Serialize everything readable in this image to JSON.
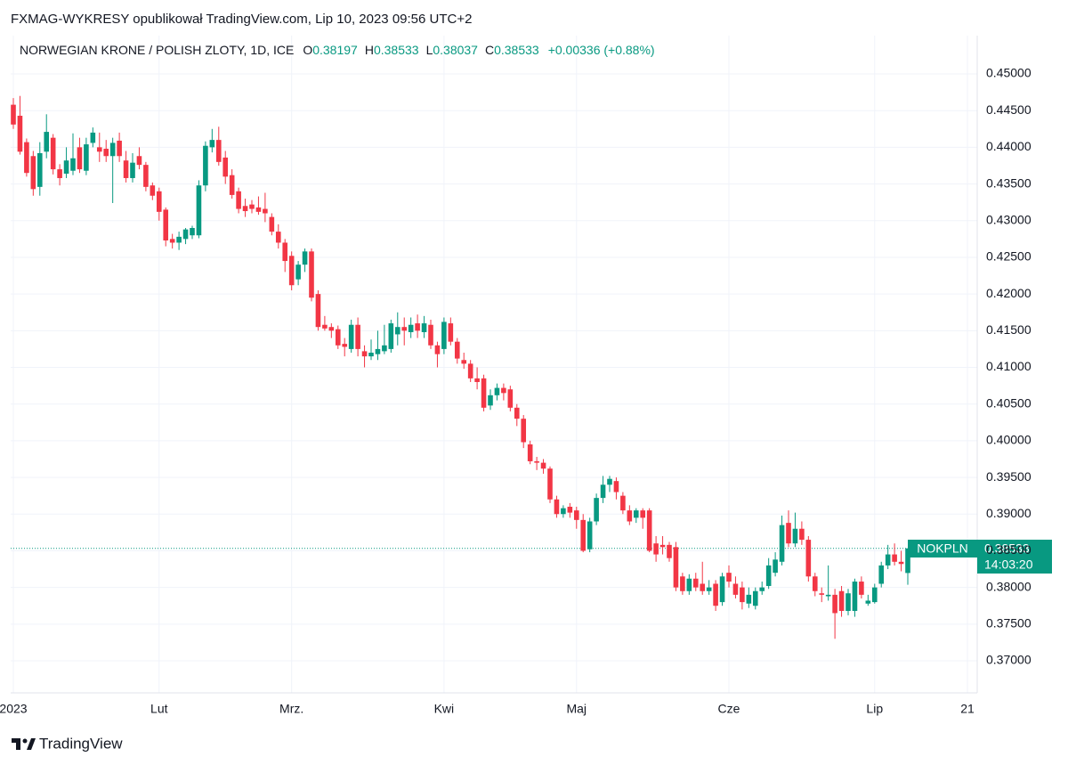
{
  "header": "FXMAG-WYKRESY opublikował TradingView.com, Lip 10, 2023 09:56 UTC+2",
  "footer": {
    "brand": "TradingView"
  },
  "chart_data": {
    "type": "candlestick",
    "title": "NORWEGIAN KRONE / POLISH ZLOTY, 1D, ICE",
    "ohlc_labels": [
      "O",
      "H",
      "L",
      "C"
    ],
    "change_label": "+0.00336 (+0.88%)",
    "countdown": "14:03:20",
    "categories": [
      "2023",
      null,
      null,
      null,
      null,
      null,
      null,
      null,
      null,
      null,
      null,
      null,
      null,
      null,
      null,
      null,
      null,
      null,
      null,
      null,
      null,
      null,
      "Lut",
      null,
      null,
      null,
      null,
      null,
      null,
      null,
      null,
      null,
      null,
      null,
      null,
      null,
      null,
      null,
      null,
      null,
      null,
      null,
      "Mrz.",
      null,
      null,
      null,
      null,
      null,
      null,
      null,
      null,
      null,
      null,
      null,
      null,
      null,
      null,
      null,
      null,
      null,
      null,
      null,
      null,
      null,
      null,
      "Kwi",
      null,
      null,
      null,
      null,
      null,
      null,
      null,
      null,
      null,
      null,
      null,
      null,
      null,
      null,
      null,
      null,
      null,
      null,
      null,
      "Maj",
      null,
      null,
      null,
      null,
      null,
      null,
      null,
      null,
      null,
      null,
      null,
      null,
      null,
      null,
      null,
      null,
      null,
      null,
      null,
      null,
      null,
      null,
      "Cze",
      null,
      null,
      null,
      null,
      null,
      null,
      null,
      null,
      null,
      null,
      null,
      null,
      null,
      null,
      null,
      null,
      null,
      null,
      null,
      null,
      null,
      "Lip",
      null,
      null,
      null,
      null,
      null,
      null,
      null,
      null,
      null,
      null,
      null,
      null,
      null,
      "21"
    ],
    "series": [
      {
        "name": "NOKPLN",
        "up_color": "#089981",
        "down_color": "#f23645",
        "open": [
          0.4458,
          0.4443,
          0.4407,
          0.4388,
          0.4346,
          0.4394,
          0.4413,
          0.437,
          0.4364,
          0.4368,
          0.44,
          0.4368,
          0.4406,
          0.44,
          0.4398,
          0.4388,
          0.4409,
          0.4382,
          0.4358,
          0.4388,
          0.4376,
          0.4348,
          0.434,
          0.4315,
          0.4275,
          0.427,
          0.4275,
          0.428,
          0.428,
          0.4348,
          0.44,
          0.441,
          0.4386,
          0.4362,
          0.434,
          0.432,
          0.4322,
          0.4318,
          0.4316,
          0.4305,
          0.4285,
          0.427,
          0.4252,
          0.422,
          0.424,
          0.4258,
          0.42,
          0.4158,
          0.4155,
          0.4152,
          0.4132,
          0.4125,
          0.4158,
          0.4122,
          0.4115,
          0.4118,
          0.4122,
          0.4125,
          0.4145,
          0.4155,
          0.4148,
          0.416,
          0.4148,
          0.4158,
          0.413,
          0.4125,
          0.416,
          0.4135,
          0.411,
          0.4105,
          0.4085,
          0.4085,
          0.4048,
          0.4062,
          0.4072,
          0.407,
          0.4045,
          0.403,
          0.3995,
          0.3972,
          0.397,
          0.3962,
          0.392,
          0.39,
          0.391,
          0.3905,
          0.3892,
          0.3852,
          0.389,
          0.3922,
          0.394,
          0.3945,
          0.3925,
          0.3905,
          0.3895,
          0.3905,
          0.3905,
          0.386,
          0.3858,
          0.3858,
          0.3855,
          0.3815,
          0.3795,
          0.3812,
          0.3805,
          0.3795,
          0.3805,
          0.378,
          0.382,
          0.3805,
          0.38,
          0.3778,
          0.3775,
          0.3795,
          0.3802,
          0.382,
          0.3835,
          0.3888,
          0.386,
          0.388,
          0.3865,
          0.3815,
          0.3792,
          0.3788,
          0.379,
          0.3795,
          0.3768,
          0.3768,
          0.3808,
          0.3778,
          0.378,
          0.3805,
          0.383,
          0.3845,
          0.3835,
          0.38197,
          null,
          null,
          null,
          null,
          null,
          null,
          null,
          null,
          null
        ],
        "high": [
          0.4467,
          0.447,
          0.4412,
          0.4395,
          0.4407,
          0.4445,
          0.4418,
          0.4377,
          0.44,
          0.4419,
          0.4413,
          0.4413,
          0.4427,
          0.442,
          0.441,
          0.4413,
          0.442,
          0.4395,
          0.4392,
          0.44,
          0.438,
          0.4352,
          0.4345,
          0.4318,
          0.4282,
          0.4285,
          0.429,
          0.4293,
          0.4355,
          0.4408,
          0.4425,
          0.4428,
          0.4395,
          0.437,
          0.4345,
          0.433,
          0.4328,
          0.4333,
          0.4338,
          0.431,
          0.4295,
          0.4275,
          0.4258,
          0.4245,
          0.4262,
          0.4262,
          0.4205,
          0.417,
          0.416,
          0.4157,
          0.414,
          0.4165,
          0.4168,
          0.413,
          0.4138,
          0.415,
          0.4158,
          0.4165,
          0.4175,
          0.4168,
          0.4168,
          0.4172,
          0.417,
          0.4165,
          0.4135,
          0.4168,
          0.4168,
          0.414,
          0.412,
          0.411,
          0.41,
          0.409,
          0.407,
          0.4078,
          0.4078,
          0.4075,
          0.405,
          0.4035,
          0.4,
          0.3978,
          0.3975,
          0.3965,
          0.3925,
          0.3912,
          0.3915,
          0.391,
          0.39,
          0.3895,
          0.3928,
          0.3952,
          0.3952,
          0.395,
          0.393,
          0.3912,
          0.3908,
          0.3908,
          0.3908,
          0.387,
          0.387,
          0.3862,
          0.3862,
          0.382,
          0.3818,
          0.382,
          0.3835,
          0.381,
          0.381,
          0.382,
          0.383,
          0.3815,
          0.3808,
          0.38,
          0.38,
          0.3808,
          0.384,
          0.3848,
          0.3898,
          0.3905,
          0.3902,
          0.389,
          0.387,
          0.382,
          0.38,
          0.383,
          0.3798,
          0.3802,
          0.3798,
          0.3812,
          0.3815,
          0.379,
          0.3805,
          0.3835,
          0.3858,
          0.386,
          0.385,
          0.38533,
          null,
          null,
          null,
          null,
          null,
          null,
          null,
          null,
          null
        ],
        "low": [
          0.4425,
          0.439,
          0.436,
          0.4334,
          0.4334,
          0.4385,
          0.4363,
          0.4348,
          0.4358,
          0.4362,
          0.4365,
          0.4362,
          0.44,
          0.438,
          0.438,
          0.4324,
          0.438,
          0.4352,
          0.4352,
          0.437,
          0.434,
          0.4328,
          0.43,
          0.4265,
          0.4262,
          0.426,
          0.4268,
          0.4275,
          0.4276,
          0.434,
          0.4393,
          0.4375,
          0.435,
          0.433,
          0.431,
          0.4305,
          0.431,
          0.4308,
          0.4298,
          0.428,
          0.4262,
          0.423,
          0.4205,
          0.4212,
          0.423,
          0.419,
          0.415,
          0.415,
          0.414,
          0.4125,
          0.4115,
          0.412,
          0.4115,
          0.41,
          0.411,
          0.411,
          0.4118,
          0.412,
          0.413,
          0.413,
          0.414,
          0.414,
          0.414,
          0.4125,
          0.41,
          0.4118,
          0.413,
          0.4105,
          0.4098,
          0.408,
          0.407,
          0.404,
          0.4042,
          0.4055,
          0.4055,
          0.404,
          0.402,
          0.399,
          0.3968,
          0.396,
          0.3955,
          0.3915,
          0.3895,
          0.3895,
          0.3895,
          0.388,
          0.3848,
          0.3848,
          0.3885,
          0.3915,
          0.393,
          0.392,
          0.39,
          0.3885,
          0.3888,
          0.388,
          0.3848,
          0.3835,
          0.3845,
          0.3835,
          0.3795,
          0.379,
          0.379,
          0.3795,
          0.379,
          0.379,
          0.3768,
          0.3775,
          0.38,
          0.3785,
          0.377,
          0.3772,
          0.377,
          0.379,
          0.3798,
          0.3815,
          0.383,
          0.3855,
          0.3855,
          0.3858,
          0.3808,
          0.3788,
          0.378,
          0.3782,
          0.373,
          0.376,
          0.3762,
          0.376,
          0.3785,
          0.3775,
          0.3778,
          0.38,
          0.3825,
          0.383,
          0.3822,
          0.38037,
          null,
          null,
          null,
          null,
          null,
          null,
          null,
          null,
          null
        ],
        "close": [
          0.4431,
          0.4394,
          0.4365,
          0.4343,
          0.4392,
          0.4421,
          0.437,
          0.4358,
          0.4382,
          0.4385,
          0.437,
          0.4404,
          0.442,
          0.4394,
          0.4388,
          0.4406,
          0.4388,
          0.4358,
          0.4379,
          0.4376,
          0.4346,
          0.4334,
          0.4312,
          0.4273,
          0.427,
          0.4278,
          0.4288,
          0.429,
          0.4348,
          0.4402,
          0.441,
          0.438,
          0.436,
          0.4335,
          0.4316,
          0.4313,
          0.4316,
          0.4312,
          0.431,
          0.4285,
          0.427,
          0.4245,
          0.4212,
          0.424,
          0.4258,
          0.4195,
          0.4155,
          0.4153,
          0.415,
          0.413,
          0.4128,
          0.4158,
          0.4125,
          0.4115,
          0.412,
          0.4125,
          0.413,
          0.416,
          0.4155,
          0.415,
          0.4158,
          0.415,
          0.416,
          0.413,
          0.4118,
          0.4162,
          0.4135,
          0.4112,
          0.4105,
          0.4085,
          0.408,
          0.4045,
          0.4062,
          0.4072,
          0.4065,
          0.4045,
          0.403,
          0.3998,
          0.3972,
          0.397,
          0.3962,
          0.392,
          0.39,
          0.3908,
          0.3902,
          0.3892,
          0.385,
          0.389,
          0.3922,
          0.394,
          0.3948,
          0.393,
          0.3905,
          0.389,
          0.3905,
          0.3895,
          0.385,
          0.3845,
          0.3855,
          0.384,
          0.38,
          0.3795,
          0.3812,
          0.38,
          0.3795,
          0.38,
          0.3775,
          0.3815,
          0.3808,
          0.379,
          0.378,
          0.379,
          0.3795,
          0.38,
          0.383,
          0.3838,
          0.3885,
          0.386,
          0.388,
          0.3865,
          0.3815,
          0.3795,
          0.379,
          0.379,
          0.3765,
          0.3768,
          0.3792,
          0.3808,
          0.379,
          0.3782,
          0.38,
          0.383,
          0.3845,
          0.3835,
          0.3832,
          0.38533,
          null,
          null,
          null,
          null,
          null,
          null,
          null,
          null,
          null
        ]
      }
    ],
    "ylim": [
      0.36563,
      0.45522
    ],
    "yticks": [
      {
        "value": 0.37,
        "label": "0.37000"
      },
      {
        "value": 0.375,
        "label": "0.37500"
      },
      {
        "value": 0.38,
        "label": "0.38000"
      },
      {
        "value": 0.385,
        "label": "0.38500"
      },
      {
        "value": 0.39,
        "label": "0.39000"
      },
      {
        "value": 0.395,
        "label": "0.39500"
      },
      {
        "value": 0.4,
        "label": "0.40000"
      },
      {
        "value": 0.405,
        "label": "0.40500"
      },
      {
        "value": 0.41,
        "label": "0.41000"
      },
      {
        "value": 0.415,
        "label": "0.41500"
      },
      {
        "value": 0.42,
        "label": "0.42000"
      },
      {
        "value": 0.425,
        "label": "0.42500"
      },
      {
        "value": 0.43,
        "label": "0.43000"
      },
      {
        "value": 0.435,
        "label": "0.43500"
      },
      {
        "value": 0.44,
        "label": "0.44000"
      },
      {
        "value": 0.445,
        "label": "0.44500"
      },
      {
        "value": 0.45,
        "label": "0.45000"
      }
    ],
    "grid": true
  }
}
